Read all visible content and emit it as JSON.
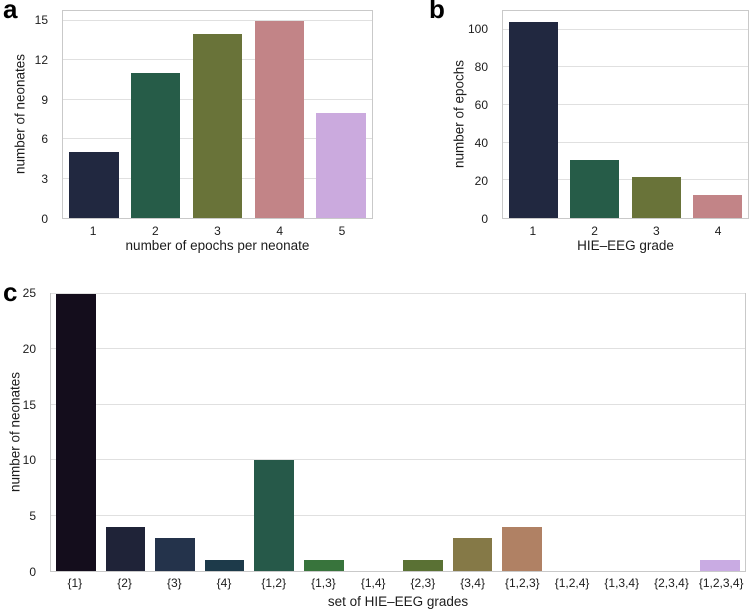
{
  "figure": {
    "background": "#ffffff",
    "grid_color": "#e0e0e0",
    "spine_color": "#c9c9c9",
    "text_color": "#1c1c1c"
  },
  "chart_data": [
    {
      "id": "a",
      "panel_label": "a",
      "type": "bar",
      "title": "",
      "xlabel": "number of epochs per neonate",
      "ylabel": "number of neonates",
      "categories": [
        "1",
        "2",
        "3",
        "4",
        "5"
      ],
      "values": [
        5,
        11,
        14,
        15,
        8
      ],
      "bar_colors": [
        "#212840",
        "#265c48",
        "#697339",
        "#c28487",
        "#cbaade"
      ],
      "yticks": [
        0,
        3,
        6,
        9,
        12,
        15
      ],
      "ylim": [
        0,
        15.75
      ],
      "grid": "horizontal",
      "legend": "none"
    },
    {
      "id": "b",
      "panel_label": "b",
      "type": "bar",
      "title": "",
      "xlabel": "HIE–EEG grade",
      "ylabel": "number of epochs",
      "categories": [
        "1",
        "2",
        "3",
        "4"
      ],
      "values": [
        104,
        31,
        22,
        12
      ],
      "bar_colors": [
        "#212840",
        "#265c48",
        "#697339",
        "#c28487"
      ],
      "yticks": [
        0,
        20,
        40,
        60,
        80,
        100
      ],
      "ylim": [
        0,
        110
      ],
      "grid": "horizontal",
      "legend": "none"
    },
    {
      "id": "c",
      "panel_label": "c",
      "type": "bar",
      "title": "",
      "xlabel": "set of HIE–EEG grades",
      "ylabel": "number of neonates",
      "categories": [
        "{1}",
        "{2}",
        "{3}",
        "{4}",
        "{1,2}",
        "{1,3}",
        "{1,4}",
        "{2,3}",
        "{3,4}",
        "{1,2,3}",
        "{1,2,4}",
        "{1,3,4}",
        "{2,3,4}",
        "{1,2,3,4}"
      ],
      "values": [
        25,
        4,
        3,
        1,
        10,
        1,
        0,
        1,
        3,
        4,
        0,
        0,
        0,
        1
      ],
      "bar_colors": [
        "#140d1c",
        "#1f2338",
        "#24334b",
        "#1d3a4a",
        "#265949",
        "#38743c",
        "#477a35",
        "#5a7134",
        "#857947",
        "#b08164",
        "#bb8d80",
        "#c599a0",
        "#c8a1c8",
        "#c9abe3"
      ],
      "yticks": [
        0,
        5,
        10,
        15,
        20,
        25
      ],
      "ylim": [
        0,
        25
      ],
      "grid": "horizontal",
      "legend": "none"
    }
  ]
}
